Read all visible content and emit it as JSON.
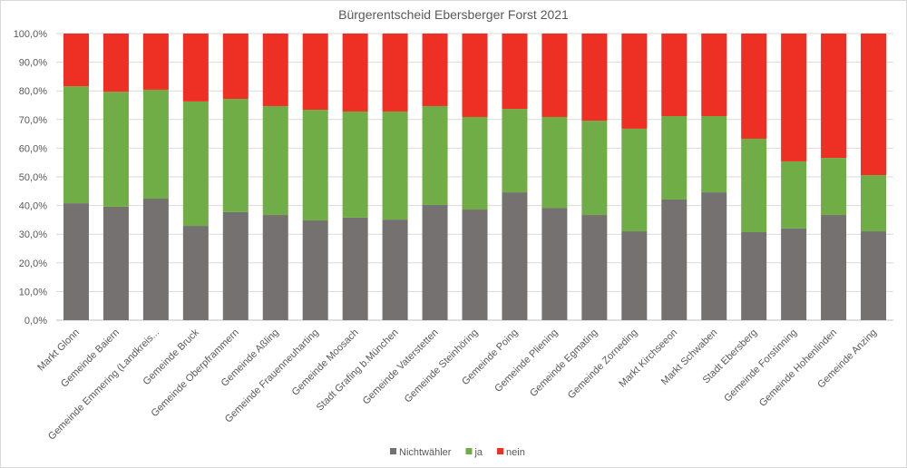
{
  "chart_data": {
    "type": "bar",
    "stacked": true,
    "title": "Bürgerentscheid Ebersberger Forst 2021",
    "xlabel": "",
    "ylabel": "",
    "ylim": [
      0,
      100
    ],
    "y_ticks": [
      "0,0%",
      "10,0%",
      "20,0%",
      "30,0%",
      "40,0%",
      "50,0%",
      "60,0%",
      "70,0%",
      "80,0%",
      "90,0%",
      "100,0%"
    ],
    "legend_position": "bottom",
    "categories": [
      "Markt Glonn",
      "Gemeinde Baiern",
      "Gemeinde Emmering (Landkreis...",
      "Gemeinde Bruck",
      "Gemeinde Oberpframmern",
      "Gemeinde Aßling",
      "Gemeinde Frauenneuharting",
      "Gemeinde Moosach",
      "Stadt Grafing b.München",
      "Gemeinde Vaterstetten",
      "Gemeinde Steinhöring",
      "Gemeinde Poing",
      "Gemeinde Pliening",
      "Gemeinde Egmating",
      "Gemeinde Zorneding",
      "Markt Kirchseeon",
      "Markt Schwaben",
      "Stadt Ebersberg",
      "Gemeinde Forstinning",
      "Gemeinde Hohenlinden",
      "Gemeinde Anzing"
    ],
    "series": [
      {
        "name": "Nichtwähler",
        "color": "#767171",
        "values": [
          40.8,
          39.6,
          42.4,
          32.9,
          37.7,
          36.7,
          34.8,
          35.8,
          35.1,
          40.2,
          38.6,
          44.6,
          39.2,
          36.7,
          31.0,
          42.1,
          44.6,
          30.7,
          32.0,
          36.7,
          31.0
        ]
      },
      {
        "name": "ja",
        "color": "#70ad47",
        "values": [
          40.8,
          40.1,
          38.0,
          43.4,
          39.5,
          38.0,
          38.6,
          37.0,
          37.7,
          34.5,
          32.3,
          29.1,
          31.7,
          32.9,
          35.8,
          29.1,
          26.6,
          32.6,
          23.4,
          19.9,
          19.6
        ]
      },
      {
        "name": "nein",
        "color": "#ee3024",
        "values": [
          18.4,
          20.3,
          19.6,
          23.7,
          22.8,
          25.3,
          26.6,
          27.2,
          27.2,
          25.3,
          29.1,
          26.3,
          29.1,
          30.4,
          33.2,
          28.8,
          28.8,
          36.7,
          44.6,
          43.4,
          49.4
        ]
      }
    ]
  }
}
